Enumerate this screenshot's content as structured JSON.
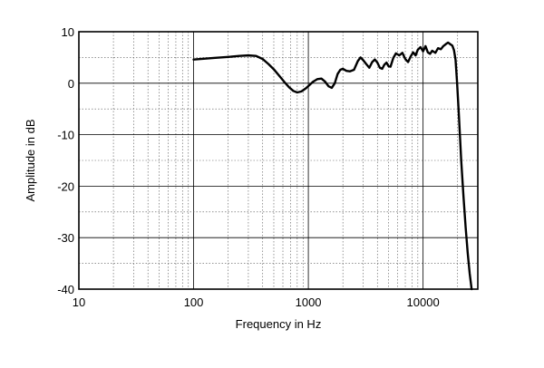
{
  "chart_data": {
    "type": "line",
    "title": "",
    "xlabel": "Frequency in Hz",
    "ylabel": "Amplitude in dB",
    "x_scale": "log",
    "xlim": [
      10,
      30000
    ],
    "ylim": [
      -40,
      10
    ],
    "x_ticks": [
      {
        "value": 10,
        "label": "10"
      },
      {
        "value": 100,
        "label": "100"
      },
      {
        "value": 1000,
        "label": "1000"
      },
      {
        "value": 10000,
        "label": "10000"
      }
    ],
    "y_ticks": [
      {
        "value": 10,
        "label": "10"
      },
      {
        "value": 0,
        "label": "0"
      },
      {
        "value": -10,
        "label": "-10"
      },
      {
        "value": -20,
        "label": "-20"
      },
      {
        "value": -30,
        "label": "-30"
      },
      {
        "value": -40,
        "label": "-40"
      }
    ],
    "grid": true,
    "legend": "none",
    "line_color": "#000000",
    "series": [
      {
        "name": "",
        "points": [
          [
            100,
            4.6
          ],
          [
            150,
            4.9
          ],
          [
            200,
            5.1
          ],
          [
            250,
            5.3
          ],
          [
            300,
            5.4
          ],
          [
            350,
            5.3
          ],
          [
            400,
            4.7
          ],
          [
            450,
            3.7
          ],
          [
            500,
            2.7
          ],
          [
            560,
            1.4
          ],
          [
            620,
            0.2
          ],
          [
            680,
            -0.8
          ],
          [
            740,
            -1.5
          ],
          [
            800,
            -1.8
          ],
          [
            870,
            -1.6
          ],
          [
            950,
            -1.0
          ],
          [
            1030,
            -0.3
          ],
          [
            1100,
            0.3
          ],
          [
            1200,
            0.8
          ],
          [
            1300,
            0.9
          ],
          [
            1400,
            0.3
          ],
          [
            1500,
            -0.6
          ],
          [
            1600,
            -0.9
          ],
          [
            1700,
            0.0
          ],
          [
            1800,
            1.8
          ],
          [
            1900,
            2.6
          ],
          [
            2000,
            2.8
          ],
          [
            2150,
            2.4
          ],
          [
            2300,
            2.3
          ],
          [
            2500,
            2.6
          ],
          [
            2700,
            4.3
          ],
          [
            2850,
            5.0
          ],
          [
            3000,
            4.5
          ],
          [
            3200,
            3.7
          ],
          [
            3400,
            3.0
          ],
          [
            3600,
            4.1
          ],
          [
            3800,
            4.6
          ],
          [
            4000,
            4.0
          ],
          [
            4200,
            3.0
          ],
          [
            4400,
            2.8
          ],
          [
            4600,
            3.6
          ],
          [
            4800,
            4.0
          ],
          [
            5000,
            3.3
          ],
          [
            5200,
            3.2
          ],
          [
            5500,
            4.9
          ],
          [
            5800,
            5.8
          ],
          [
            6200,
            5.4
          ],
          [
            6600,
            5.9
          ],
          [
            7000,
            4.7
          ],
          [
            7400,
            4.1
          ],
          [
            7800,
            5.2
          ],
          [
            8200,
            6.0
          ],
          [
            8600,
            5.4
          ],
          [
            9000,
            6.5
          ],
          [
            9500,
            7.0
          ],
          [
            10000,
            6.2
          ],
          [
            10500,
            7.2
          ],
          [
            11000,
            6.0
          ],
          [
            11500,
            5.7
          ],
          [
            12000,
            6.3
          ],
          [
            12800,
            5.9
          ],
          [
            13500,
            6.8
          ],
          [
            14300,
            6.6
          ],
          [
            15000,
            7.2
          ],
          [
            15800,
            7.6
          ],
          [
            16500,
            7.9
          ],
          [
            17200,
            7.6
          ],
          [
            18000,
            7.3
          ],
          [
            18600,
            6.4
          ],
          [
            19200,
            4.5
          ],
          [
            19800,
            0.0
          ],
          [
            20500,
            -6.0
          ],
          [
            21500,
            -15.0
          ],
          [
            22500,
            -22.0
          ],
          [
            23500,
            -28.0
          ],
          [
            24500,
            -33.0
          ],
          [
            25500,
            -37.0
          ],
          [
            26500,
            -40.0
          ]
        ]
      }
    ]
  }
}
